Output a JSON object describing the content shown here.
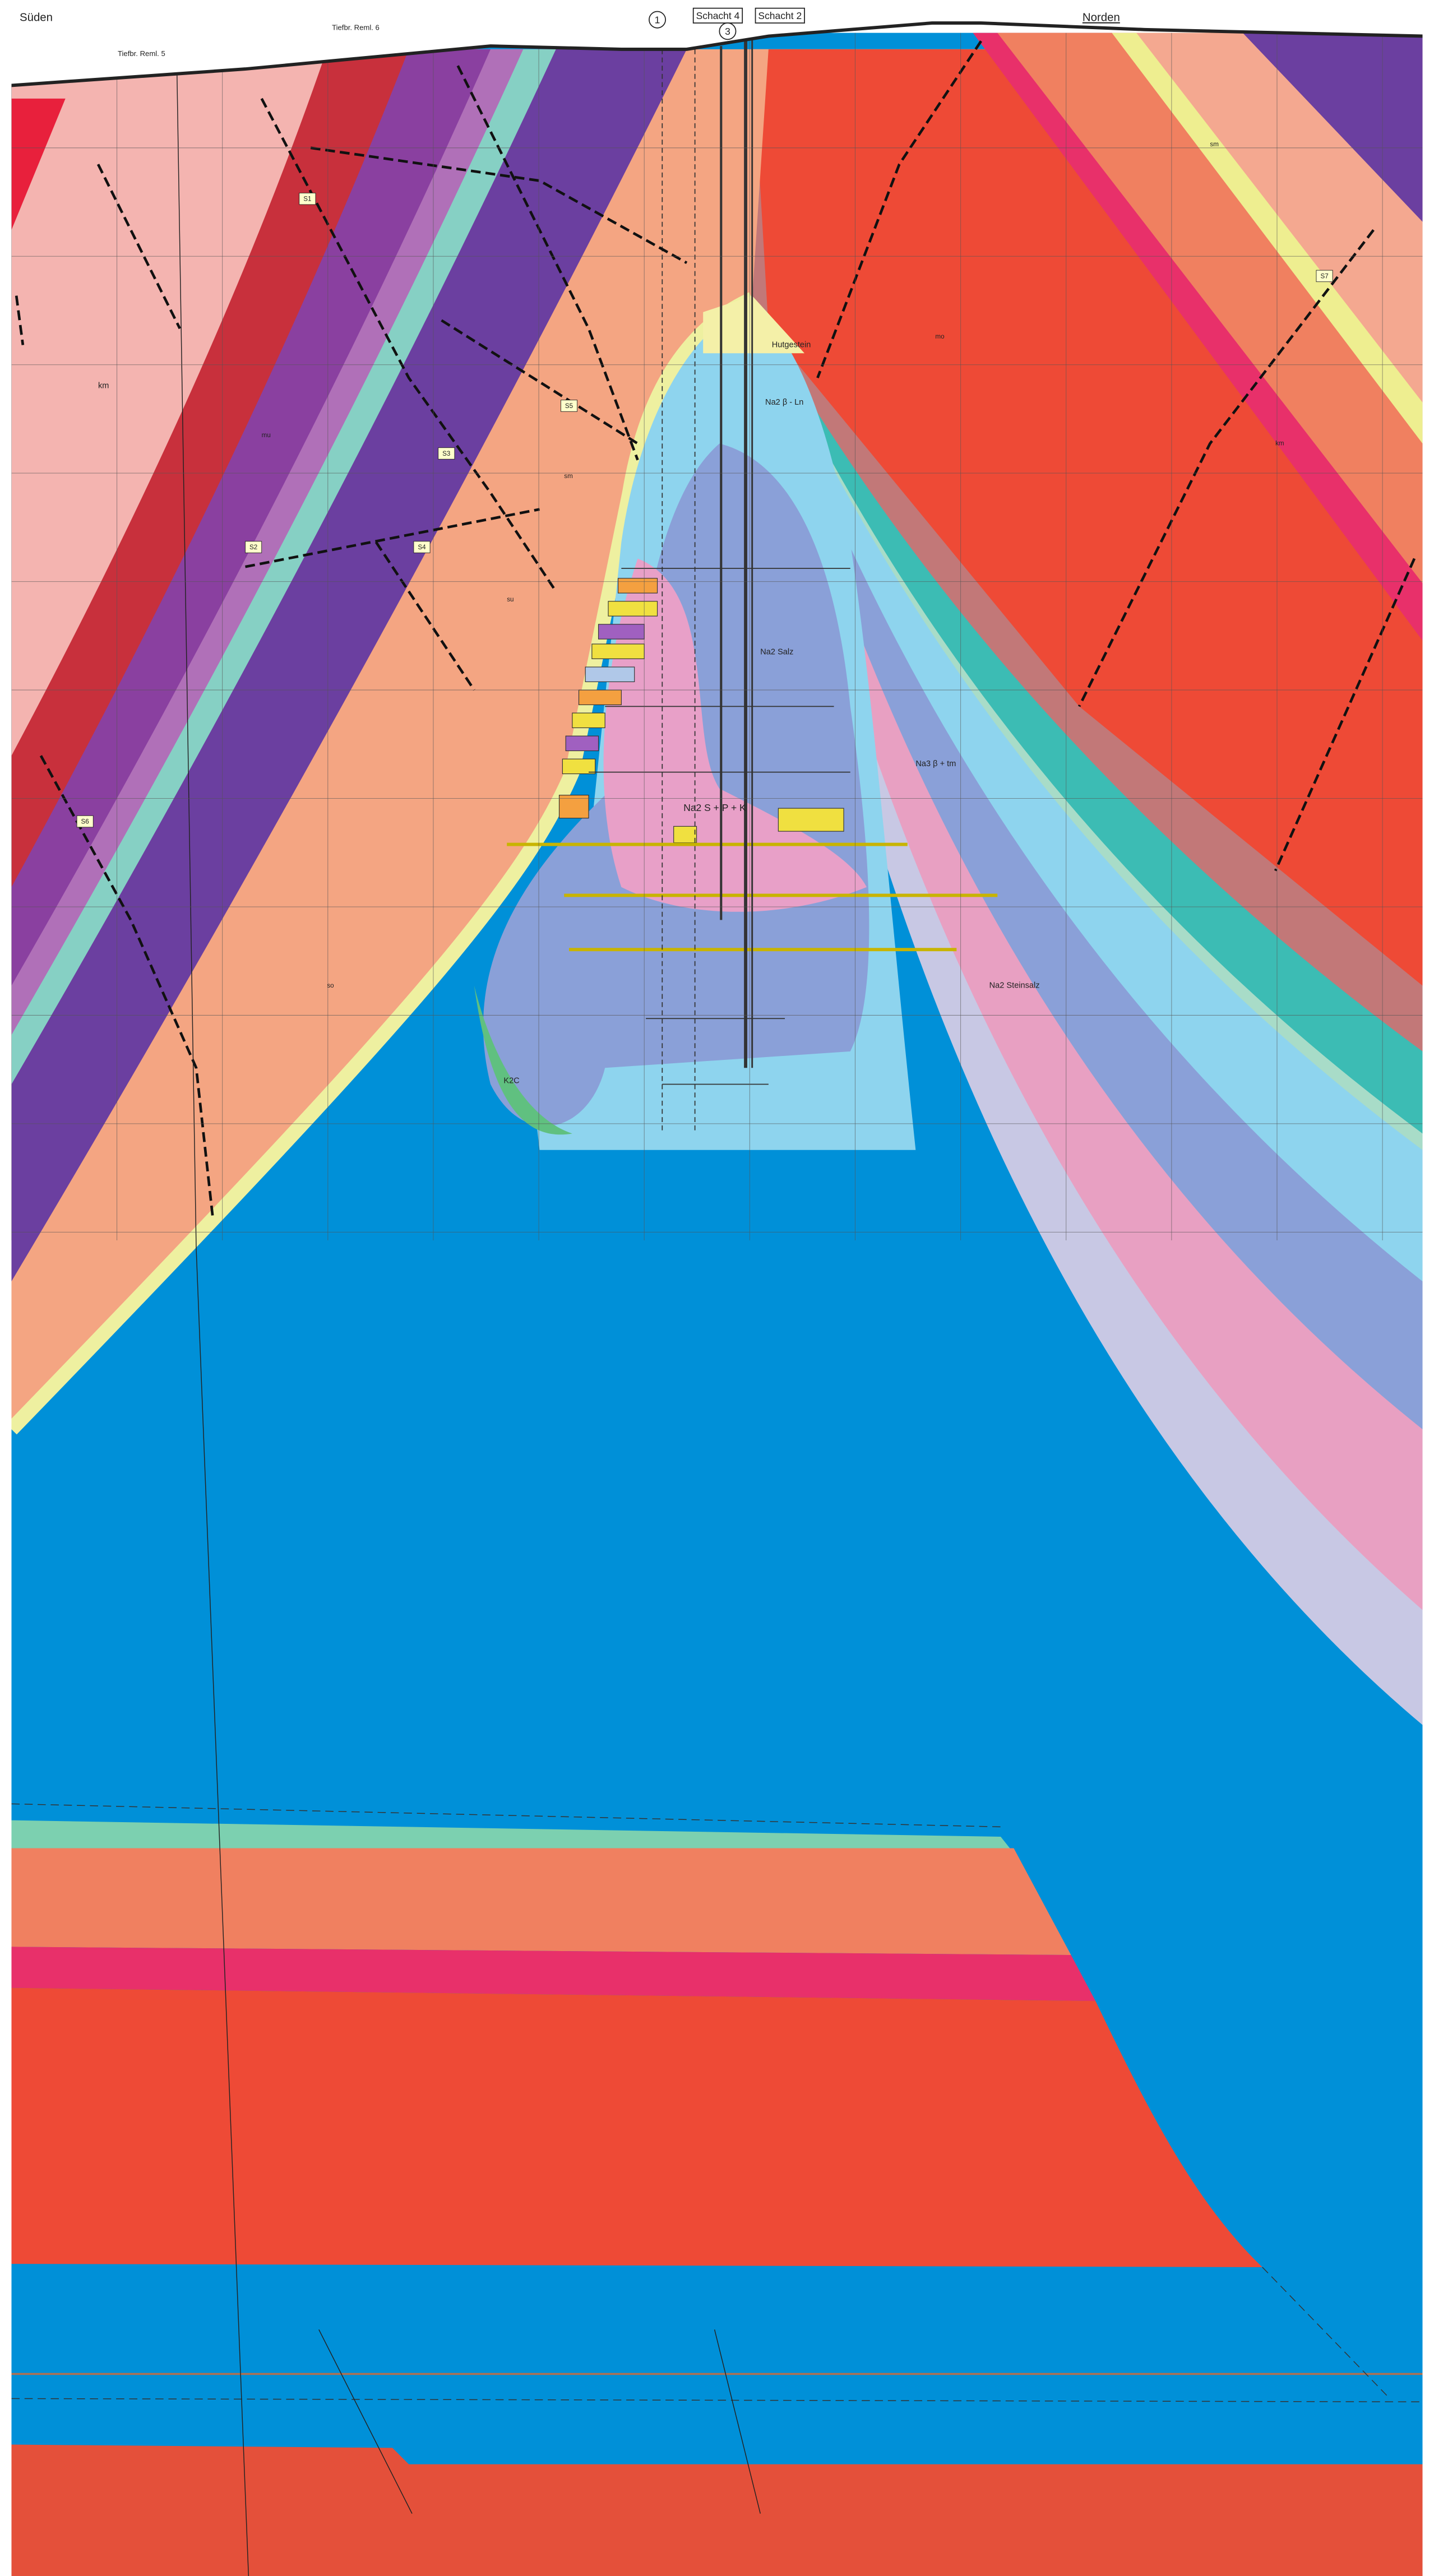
{
  "header": {
    "left": "Süden",
    "right": "Norden",
    "shaft_a": "Schacht 4",
    "shaft_b": "Schacht 2",
    "marker_1": "1",
    "marker_3": "3"
  },
  "boreholes": [
    "Tiefbr. Reml. 5",
    "Tiefbr. Reml. 6"
  ],
  "units": [
    "km",
    "mu",
    "so",
    "sm",
    "su",
    "mo",
    "km",
    "sm",
    "Hutgestein",
    "Na2 β - Ln",
    "Na2 S + P + K",
    "Na3 β + tm",
    "Na2 Salz",
    "K2C",
    "Na2 Steinsalz"
  ],
  "faults": [
    "S1",
    "S2",
    "S3",
    "S4",
    "S5",
    "S6",
    "S7"
  ]
}
